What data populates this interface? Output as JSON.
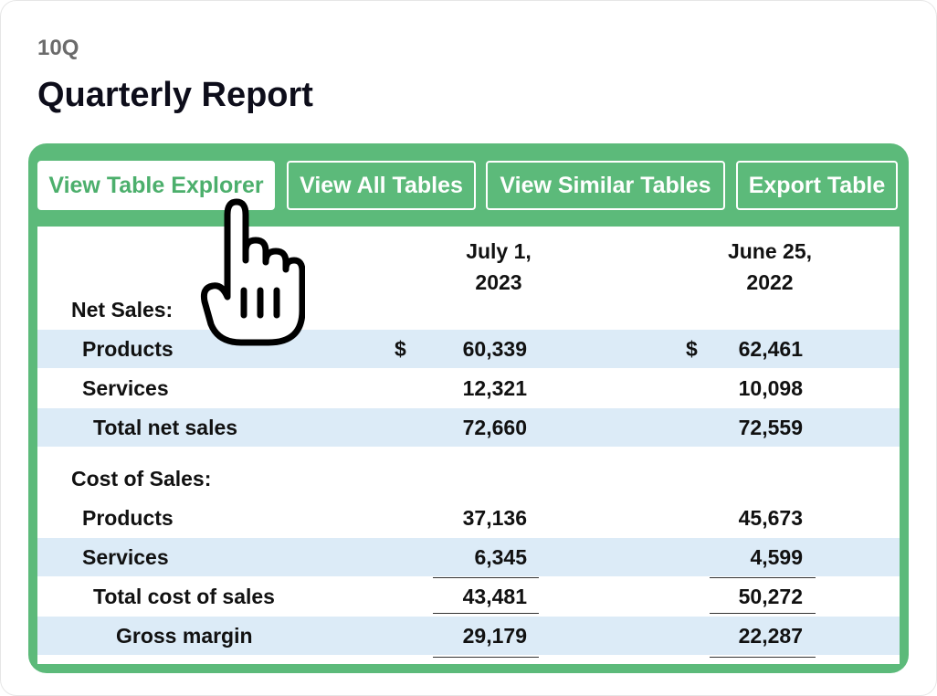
{
  "header": {
    "form_code": "10Q",
    "title": "Quarterly Report"
  },
  "toolbar": {
    "buttons": [
      {
        "label": "View Table Explorer",
        "active": true
      },
      {
        "label": "View All Tables",
        "active": false
      },
      {
        "label": "View Similar Tables",
        "active": false
      },
      {
        "label": "Export Table",
        "active": false
      }
    ]
  },
  "table": {
    "columns": [
      {
        "line1": "July 1,",
        "line2": "2023"
      },
      {
        "line1": "June 25,",
        "line2": "2022"
      }
    ],
    "currency_symbol": "$",
    "sections": {
      "net_sales": "Net Sales:",
      "cost_of_sales": "Cost of Sales:"
    },
    "rows": {
      "ns_products": {
        "label": "Products",
        "v1": "60,339",
        "v2": "62,461"
      },
      "ns_services": {
        "label": "Services",
        "v1": "12,321",
        "v2": "10,098"
      },
      "ns_total": {
        "label": "Total net sales",
        "v1": "72,660",
        "v2": "72,559"
      },
      "cs_products": {
        "label": "Products",
        "v1": "37,136",
        "v2": "45,673"
      },
      "cs_services": {
        "label": "Services",
        "v1": "6,345",
        "v2": "4,599"
      },
      "cs_total": {
        "label": "Total cost of sales",
        "v1": "43,481",
        "v2": "50,272"
      },
      "gross_margin": {
        "label": "Gross margin",
        "v1": "29,179",
        "v2": "22,287"
      }
    }
  },
  "cursor": {
    "icon": "pointer-hand-icon"
  },
  "colors": {
    "accent_green": "#5cba7a",
    "row_shade": "#dcebf7",
    "active_text": "#4caf6c"
  }
}
